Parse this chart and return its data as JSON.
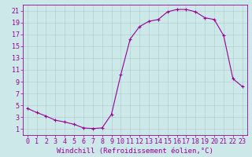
{
  "hours": [
    0,
    1,
    2,
    3,
    4,
    5,
    6,
    7,
    8,
    9,
    10,
    11,
    12,
    13,
    14,
    15,
    16,
    17,
    18,
    19,
    20,
    21,
    22,
    23
  ],
  "values": [
    4.5,
    3.8,
    3.2,
    2.5,
    2.2,
    1.8,
    1.2,
    1.1,
    1.2,
    3.5,
    10.2,
    16.2,
    18.3,
    19.2,
    19.5,
    20.8,
    21.2,
    21.2,
    20.8,
    19.8,
    19.5,
    16.8,
    9.5,
    8.2
  ],
  "line_color": "#990099",
  "marker": "+",
  "marker_size": 3,
  "marker_lw": 0.8,
  "line_width": 0.8,
  "bg_color": "#cce8e8",
  "grid_color": "#aacccc",
  "xlabel": "Windchill (Refroidissement éolien,°C)",
  "xlabel_fontsize": 6.5,
  "tick_fontsize": 6,
  "ylim": [
    0,
    22
  ],
  "xlim": [
    -0.5,
    23.5
  ],
  "yticks": [
    1,
    3,
    5,
    7,
    9,
    11,
    13,
    15,
    17,
    19,
    21
  ],
  "xticks": [
    0,
    1,
    2,
    3,
    4,
    5,
    6,
    7,
    8,
    9,
    10,
    11,
    12,
    13,
    14,
    15,
    16,
    17,
    18,
    19,
    20,
    21,
    22,
    23
  ]
}
